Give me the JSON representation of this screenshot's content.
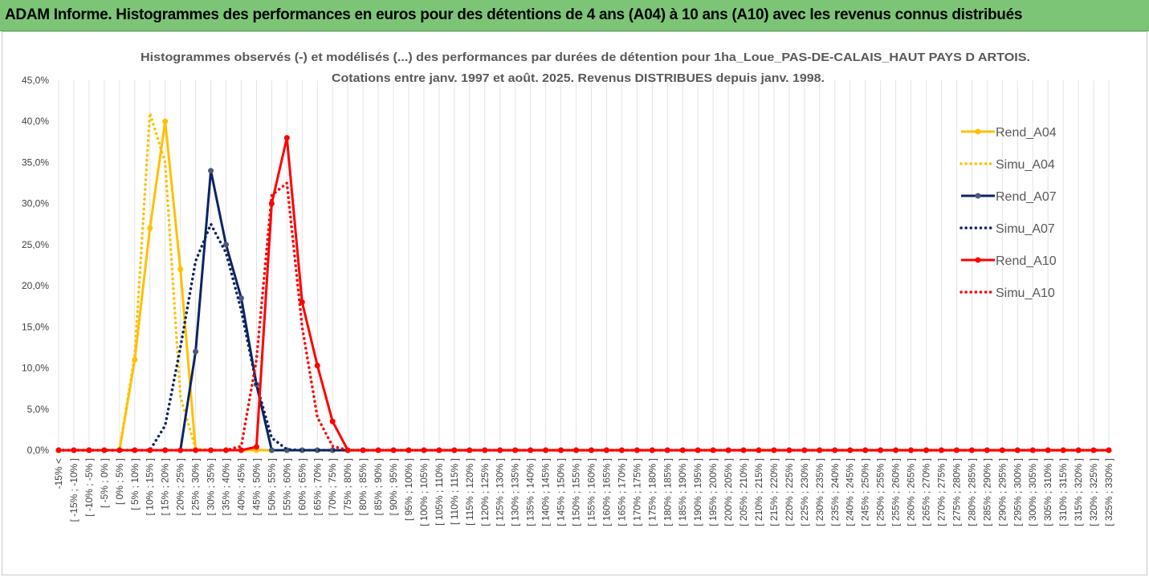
{
  "banner": {
    "title": "ADAM Informe. Histogrammes des performances en euros pour des détentions de 4 ans (A04) à 10 ans (A10) avec les revenus connus distribués"
  },
  "chart_data": {
    "type": "line",
    "title": "Histogrammes observés (-) et modélisés (...) des performances par durées de détention pour 1ha_Loue_PAS-DE-CALAIS_HAUT PAYS D ARTOIS.",
    "subtitle": "Cotations entre janv. 1997 et août. 2025. Revenus DISTRIBUES depuis janv. 1998.",
    "ylim": [
      0,
      45
    ],
    "y_ticks": [
      "0,0%",
      "5,0%",
      "10,0%",
      "15,0%",
      "20,0%",
      "25,0%",
      "30,0%",
      "35,0%",
      "40,0%",
      "45,0%"
    ],
    "legend_position": "right",
    "grid": "vertical",
    "categories": [
      "-15% <",
      "[ -15% ; -10% ]",
      "[ -10% ; -5% ]",
      "[ -5% ; 0% ]",
      "[ 0% ; 5% ]",
      "[ 5% ; 10% ]",
      "[ 10% ; 15% ]",
      "[ 15% ; 20% ]",
      "[ 20% ; 25% ]",
      "[ 25% ; 30% ]",
      "[ 30% ; 35% ]",
      "[ 35% ; 40% ]",
      "[ 40% ; 45% ]",
      "[ 45% ; 50% ]",
      "[ 50% ; 55% ]",
      "[ 55% ; 60% ]",
      "[ 60% ; 65% ]",
      "[ 65% ; 70% ]",
      "[ 70% ; 75% ]",
      "[ 75% ; 80% ]",
      "[ 80% ; 85% ]",
      "[ 85% ; 90% ]",
      "[ 90% ; 95% ]",
      "[ 95% ; 100% ]",
      "[ 100% ; 105% ]",
      "[ 105% ; 110% ]",
      "[ 110% ; 115% ]",
      "[ 115% ; 120% ]",
      "[ 120% ; 125% ]",
      "[ 125% ; 130% ]",
      "[ 130% ; 135% ]",
      "[ 135% ; 140% ]",
      "[ 140% ; 145% ]",
      "[ 145% ; 150% ]",
      "[ 150% ; 155% ]",
      "[ 155% ; 160% ]",
      "[ 160% ; 165% ]",
      "[ 165% ; 170% ]",
      "[ 170% ; 175% ]",
      "[ 175% ; 180% ]",
      "[ 180% ; 185% ]",
      "[ 185% ; 190% ]",
      "[ 190% ; 195% ]",
      "[ 195% ; 200% ]",
      "[ 200% ; 205% ]",
      "[ 205% ; 210% ]",
      "[ 210% ; 215% ]",
      "[ 215% ; 220% ]",
      "[ 220% ; 225% ]",
      "[ 225% ; 230% ]",
      "[ 230% ; 235% ]",
      "[ 235% ; 240% ]",
      "[ 240% ; 245% ]",
      "[ 245% ; 250% ]",
      "[ 250% ; 255% ]",
      "[ 255% ; 260% ]",
      "[ 260% ; 265% ]",
      "[ 265% ; 270% ]",
      "[ 270% ; 275% ]",
      "[ 275% ; 280% ]",
      "[ 280% ; 285% ]",
      "[ 285% ; 290% ]",
      "[ 290% ; 295% ]",
      "[ 295% ; 300% ]",
      "[ 300% ; 305% ]",
      "[ 305% ; 310% ]",
      "[ 310% ; 315% ]",
      "[ 315% ; 320% ]",
      "[ 320% ; 325% ]",
      "[ 325% ; 330% ]"
    ],
    "series": [
      {
        "name": "Rend_A04",
        "color": "#ffc000",
        "style": "solid",
        "markers": true,
        "values": [
          0,
          0,
          0,
          0,
          0,
          11,
          27,
          40,
          22,
          0,
          0,
          0,
          0,
          0,
          0,
          0,
          0,
          0,
          0,
          0,
          0,
          0,
          0,
          0,
          0,
          0,
          0,
          0,
          0,
          0,
          0,
          0,
          0,
          0,
          0,
          0,
          0,
          0,
          0,
          0,
          0,
          0,
          0,
          0,
          0,
          0,
          0,
          0,
          0,
          0,
          0,
          0,
          0,
          0,
          0,
          0,
          0,
          0,
          0,
          0,
          0,
          0,
          0,
          0,
          0,
          0,
          0,
          0,
          0,
          0
        ]
      },
      {
        "name": "Simu_A04",
        "color": "#ffc000",
        "style": "dotted",
        "markers": false,
        "values": [
          0,
          0,
          0,
          0,
          0,
          11.5,
          41,
          35,
          6.5,
          0.2,
          0,
          0,
          0,
          0,
          0,
          0,
          0,
          0,
          0,
          0,
          0,
          0,
          0,
          0,
          0,
          0,
          0,
          0,
          0,
          0,
          0,
          0,
          0,
          0,
          0,
          0,
          0,
          0,
          0,
          0,
          0,
          0,
          0,
          0,
          0,
          0,
          0,
          0,
          0,
          0,
          0,
          0,
          0,
          0,
          0,
          0,
          0,
          0,
          0,
          0,
          0,
          0,
          0,
          0,
          0,
          0,
          0,
          0,
          0,
          0
        ]
      },
      {
        "name": "Rend_A07",
        "color": "#0d2463",
        "style": "solid",
        "markers": true,
        "values": [
          0,
          0,
          0,
          0,
          0,
          0,
          0,
          0,
          0,
          12,
          34,
          25,
          18.5,
          8,
          0,
          0,
          0,
          0,
          0,
          0,
          0,
          0,
          0,
          0,
          0,
          0,
          0,
          0,
          0,
          0,
          0,
          0,
          0,
          0,
          0,
          0,
          0,
          0,
          0,
          0,
          0,
          0,
          0,
          0,
          0,
          0,
          0,
          0,
          0,
          0,
          0,
          0,
          0,
          0,
          0,
          0,
          0,
          0,
          0,
          0,
          0,
          0,
          0,
          0,
          0,
          0,
          0,
          0,
          0,
          0
        ]
      },
      {
        "name": "Simu_A07",
        "color": "#0d2463",
        "style": "dotted",
        "markers": false,
        "values": [
          0,
          0,
          0,
          0,
          0,
          0,
          0,
          3,
          12.5,
          23,
          27.5,
          24,
          17,
          8,
          1.5,
          0.1,
          0,
          0,
          0,
          0,
          0,
          0,
          0,
          0,
          0,
          0,
          0,
          0,
          0,
          0,
          0,
          0,
          0,
          0,
          0,
          0,
          0,
          0,
          0,
          0,
          0,
          0,
          0,
          0,
          0,
          0,
          0,
          0,
          0,
          0,
          0,
          0,
          0,
          0,
          0,
          0,
          0,
          0,
          0,
          0,
          0,
          0,
          0,
          0,
          0,
          0,
          0,
          0,
          0,
          0
        ]
      },
      {
        "name": "Rend_A10",
        "color": "#ff0000",
        "style": "solid",
        "markers": true,
        "values": [
          0,
          0,
          0,
          0,
          0,
          0,
          0,
          0,
          0,
          0,
          0,
          0,
          0,
          0.4,
          30,
          38,
          18,
          10.3,
          3.5,
          0,
          0,
          0,
          0,
          0,
          0,
          0,
          0,
          0,
          0,
          0,
          0,
          0,
          0,
          0,
          0,
          0,
          0,
          0,
          0,
          0,
          0,
          0,
          0,
          0,
          0,
          0,
          0,
          0,
          0,
          0,
          0,
          0,
          0,
          0,
          0,
          0,
          0,
          0,
          0,
          0,
          0,
          0,
          0,
          0,
          0,
          0,
          0,
          0,
          0,
          0
        ]
      },
      {
        "name": "Simu_A10",
        "color": "#ff0000",
        "style": "dotted",
        "markers": false,
        "values": [
          0,
          0,
          0,
          0,
          0,
          0,
          0,
          0,
          0,
          0,
          0,
          0,
          0.5,
          11,
          31,
          32.5,
          15,
          4,
          0.5,
          0,
          0,
          0,
          0,
          0,
          0,
          0,
          0,
          0,
          0,
          0,
          0,
          0,
          0,
          0,
          0,
          0,
          0,
          0,
          0,
          0,
          0,
          0,
          0,
          0,
          0,
          0,
          0,
          0,
          0,
          0,
          0,
          0,
          0,
          0,
          0,
          0,
          0,
          0,
          0,
          0,
          0,
          0,
          0,
          0,
          0,
          0,
          0,
          0,
          0,
          0
        ]
      }
    ]
  }
}
